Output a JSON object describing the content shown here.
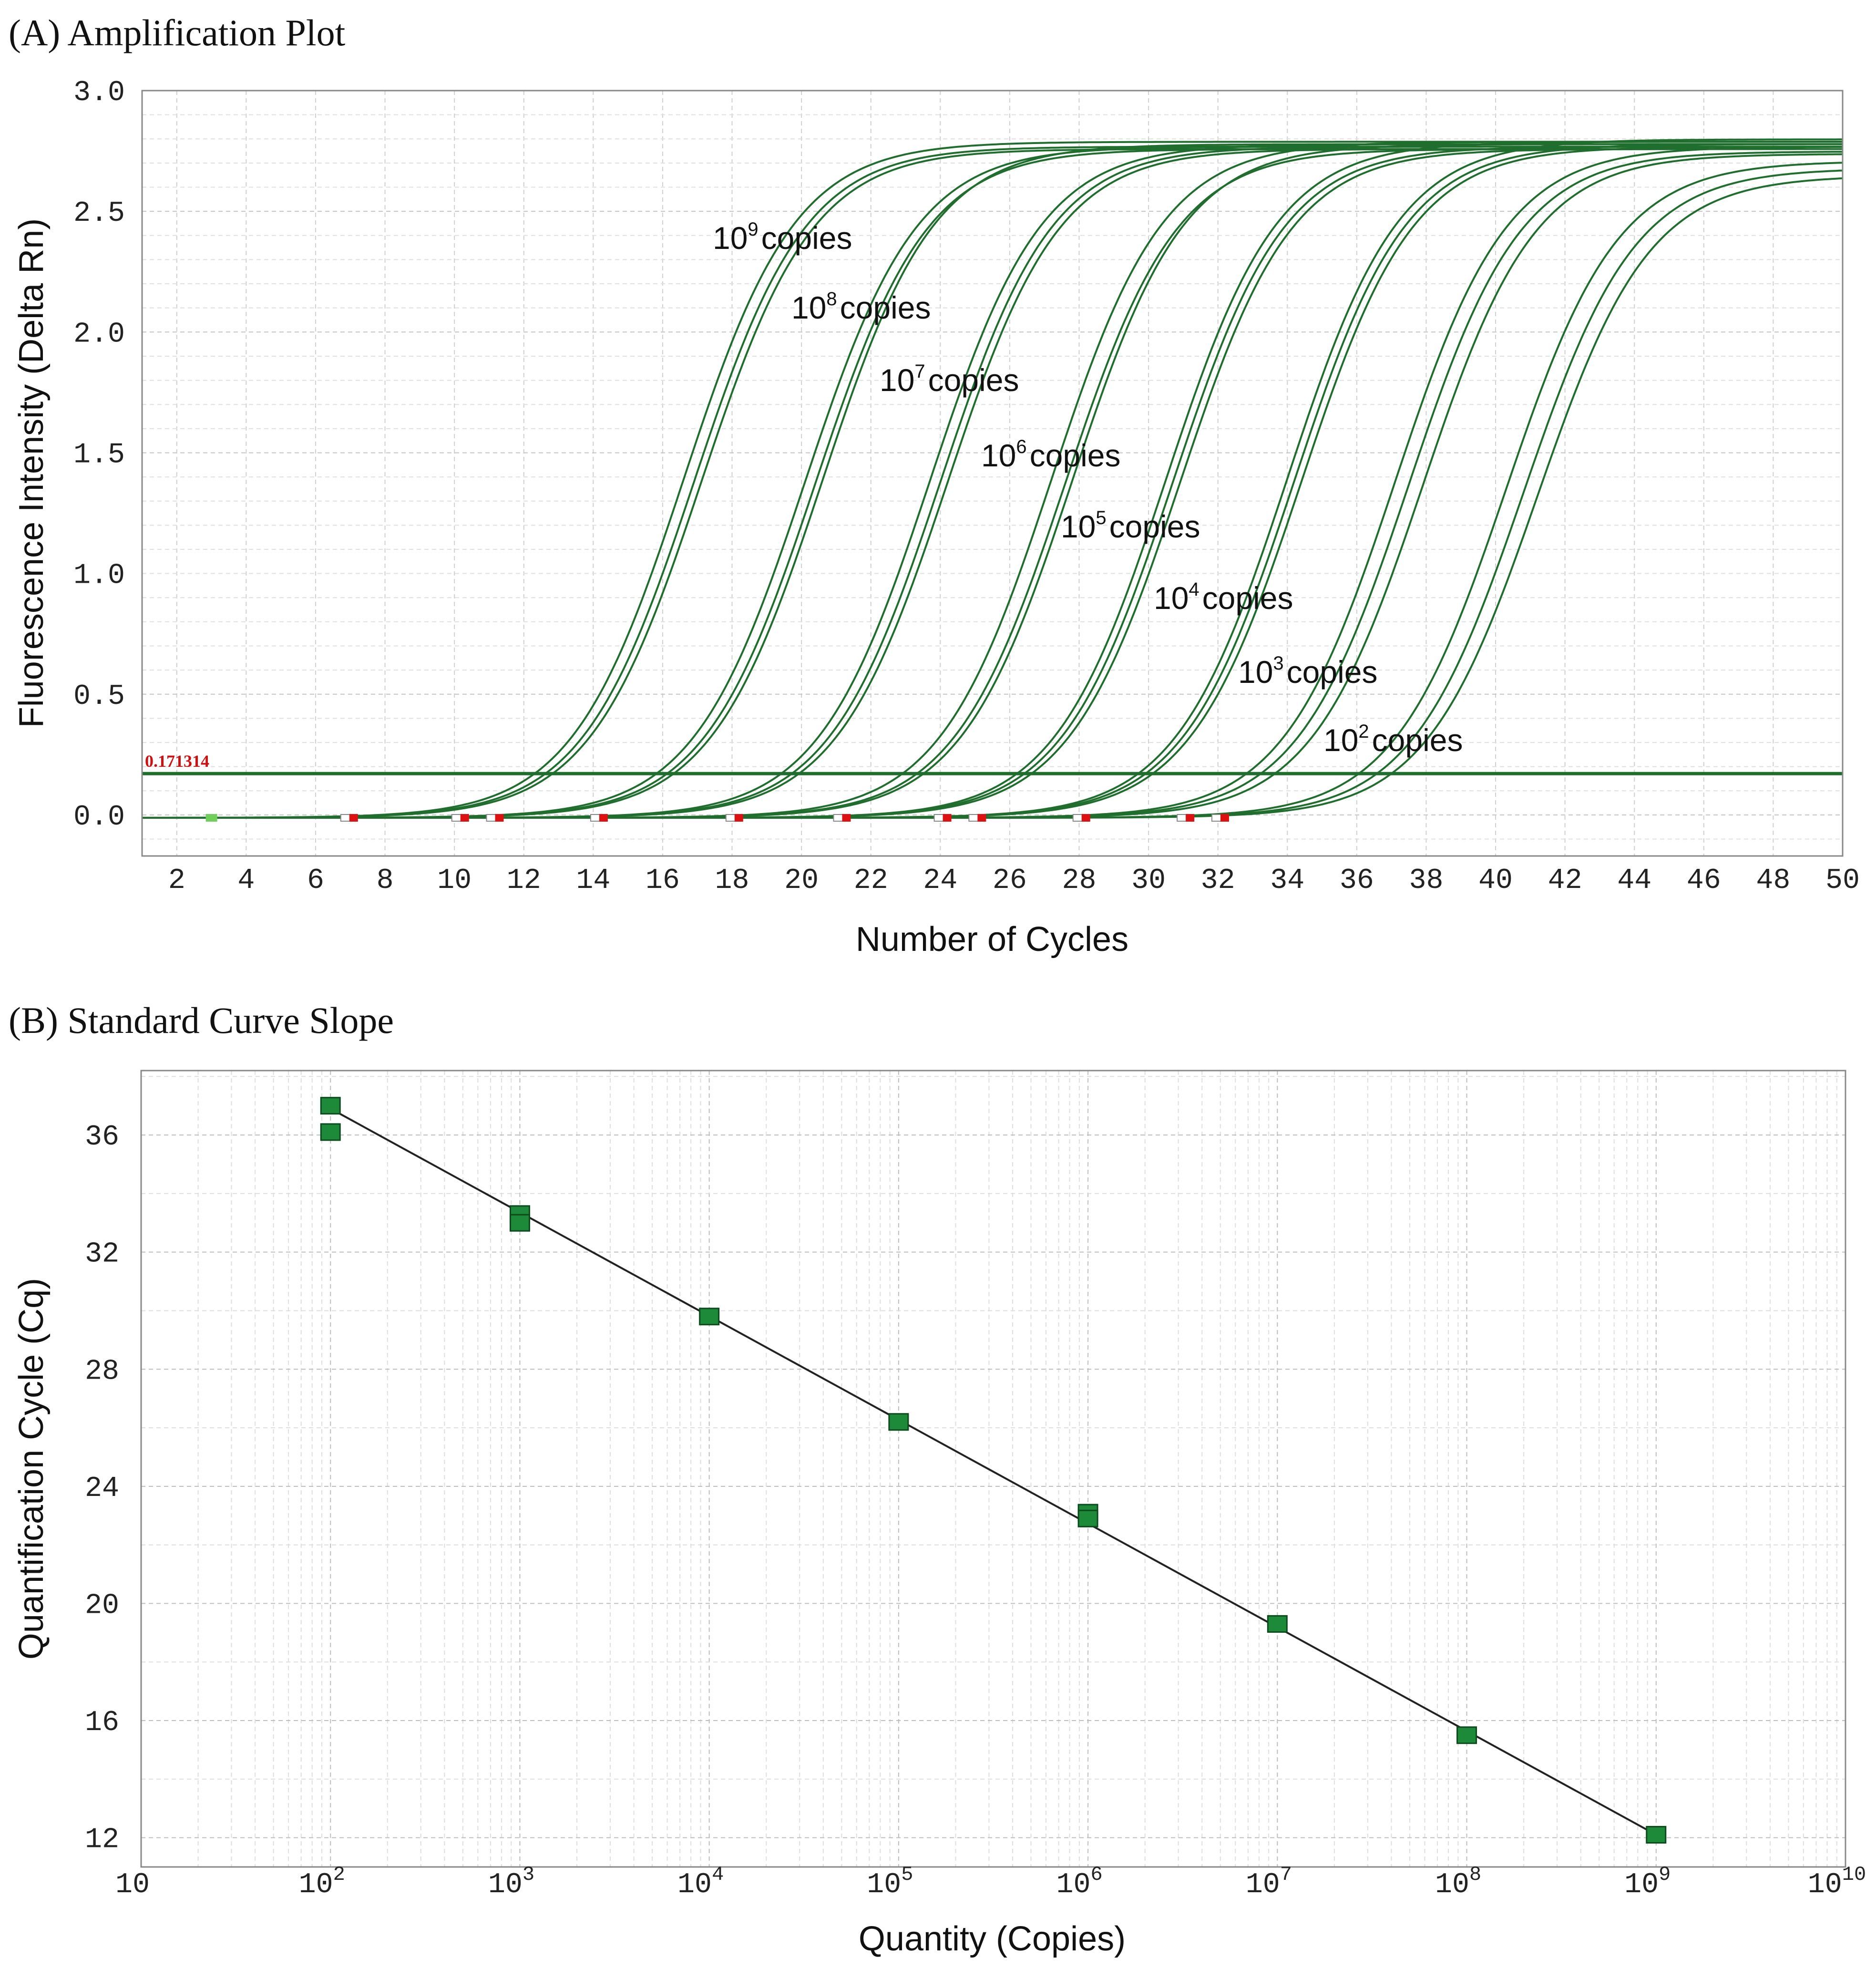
{
  "chart_data": [
    {
      "type": "line",
      "title": "(A) Amplification Plot",
      "xlabel": "Number of Cycles",
      "ylabel": "Fluorescence Intensity (Delta Rn)",
      "xlim": [
        1,
        50
      ],
      "ylim": [
        -0.17,
        3.0
      ],
      "x_ticks": [
        "2",
        "4",
        "6",
        "8",
        "10",
        "12",
        "14",
        "16",
        "18",
        "20",
        "22",
        "24",
        "26",
        "28",
        "30",
        "32",
        "34",
        "36",
        "38",
        "40",
        "42",
        "44",
        "46",
        "48",
        "50"
      ],
      "y_ticks": [
        "0.0",
        "0.5",
        "1.0",
        "1.5",
        "2.0",
        "2.5",
        "3.0"
      ],
      "grid": true,
      "threshold": {
        "label": "0.171314",
        "value": 0.171314
      },
      "series_color": "#1f6e2e",
      "threshold_label_color": "#cc1111",
      "series": [
        {
          "label": "10",
          "exponent": "9",
          "suffix": "copies",
          "replicates": [
            {
              "midpoint": 16.6,
              "plateau": 2.8
            },
            {
              "midpoint": 16.9,
              "plateau": 2.78
            },
            {
              "midpoint": 17.1,
              "plateau": 2.77
            }
          ]
        },
        {
          "label": "10",
          "exponent": "8",
          "suffix": "copies",
          "replicates": [
            {
              "midpoint": 20.1,
              "plateau": 2.78
            },
            {
              "midpoint": 20.4,
              "plateau": 2.77
            },
            {
              "midpoint": 20.6,
              "plateau": 2.79
            }
          ]
        },
        {
          "label": "10",
          "exponent": "7",
          "suffix": "copies",
          "replicates": [
            {
              "midpoint": 23.7,
              "plateau": 2.79
            },
            {
              "midpoint": 24.0,
              "plateau": 2.78
            },
            {
              "midpoint": 24.2,
              "plateau": 2.77
            }
          ]
        },
        {
          "label": "10",
          "exponent": "6",
          "suffix": "copies",
          "replicates": [
            {
              "midpoint": 27.2,
              "plateau": 2.8
            },
            {
              "midpoint": 27.6,
              "plateau": 2.77
            },
            {
              "midpoint": 27.8,
              "plateau": 2.79
            }
          ]
        },
        {
          "label": "10",
          "exponent": "5",
          "suffix": "copies",
          "replicates": [
            {
              "midpoint": 30.5,
              "plateau": 2.8
            },
            {
              "midpoint": 30.7,
              "plateau": 2.78
            },
            {
              "midpoint": 30.9,
              "plateau": 2.77
            }
          ]
        },
        {
          "label": "10",
          "exponent": "4",
          "suffix": "copies",
          "replicates": [
            {
              "midpoint": 34.0,
              "plateau": 2.81
            },
            {
              "midpoint": 34.2,
              "plateau": 2.79
            },
            {
              "midpoint": 34.4,
              "plateau": 2.78
            }
          ]
        },
        {
          "label": "10",
          "exponent": "3",
          "suffix": "copies",
          "replicates": [
            {
              "midpoint": 37.1,
              "plateau": 2.78
            },
            {
              "midpoint": 37.5,
              "plateau": 2.76
            },
            {
              "midpoint": 37.9,
              "plateau": 2.75
            }
          ]
        },
        {
          "label": "10",
          "exponent": "2",
          "suffix": "copies",
          "replicates": [
            {
              "midpoint": 40.3,
              "plateau": 2.72
            },
            {
              "midpoint": 40.8,
              "plateau": 2.69
            },
            {
              "midpoint": 41.2,
              "plateau": 2.66
            }
          ]
        }
      ]
    },
    {
      "type": "scatter",
      "title": "(B) Standard Curve Slope",
      "xlabel": "Quantity (Copies)",
      "ylabel": "Quantification Cycle (Cq)",
      "x_scale": "log",
      "xlim_exponent": [
        1,
        10
      ],
      "ylim": [
        11,
        38.2
      ],
      "y_ticks": [
        "12",
        "16",
        "20",
        "24",
        "28",
        "32",
        "36"
      ],
      "x_tick_base": "10",
      "x_tick_exponents": [
        "",
        "2",
        "3",
        "4",
        "5",
        "6",
        "7",
        "8",
        "9",
        "10"
      ],
      "grid": true,
      "marker_color": "#1d8a3a",
      "fit_line": {
        "x_exponent": [
          2,
          9
        ],
        "y": [
          36.9,
          12.1
        ]
      },
      "points": [
        {
          "x_exponent": 2,
          "y": 37.0
        },
        {
          "x_exponent": 2,
          "y": 36.1
        },
        {
          "x_exponent": 3,
          "y": 33.3
        },
        {
          "x_exponent": 3,
          "y": 33.0
        },
        {
          "x_exponent": 4,
          "y": 29.8
        },
        {
          "x_exponent": 5,
          "y": 26.2
        },
        {
          "x_exponent": 6,
          "y": 23.1
        },
        {
          "x_exponent": 6,
          "y": 22.9
        },
        {
          "x_exponent": 7,
          "y": 19.3
        },
        {
          "x_exponent": 8,
          "y": 15.5
        },
        {
          "x_exponent": 9,
          "y": 12.1
        }
      ]
    }
  ]
}
